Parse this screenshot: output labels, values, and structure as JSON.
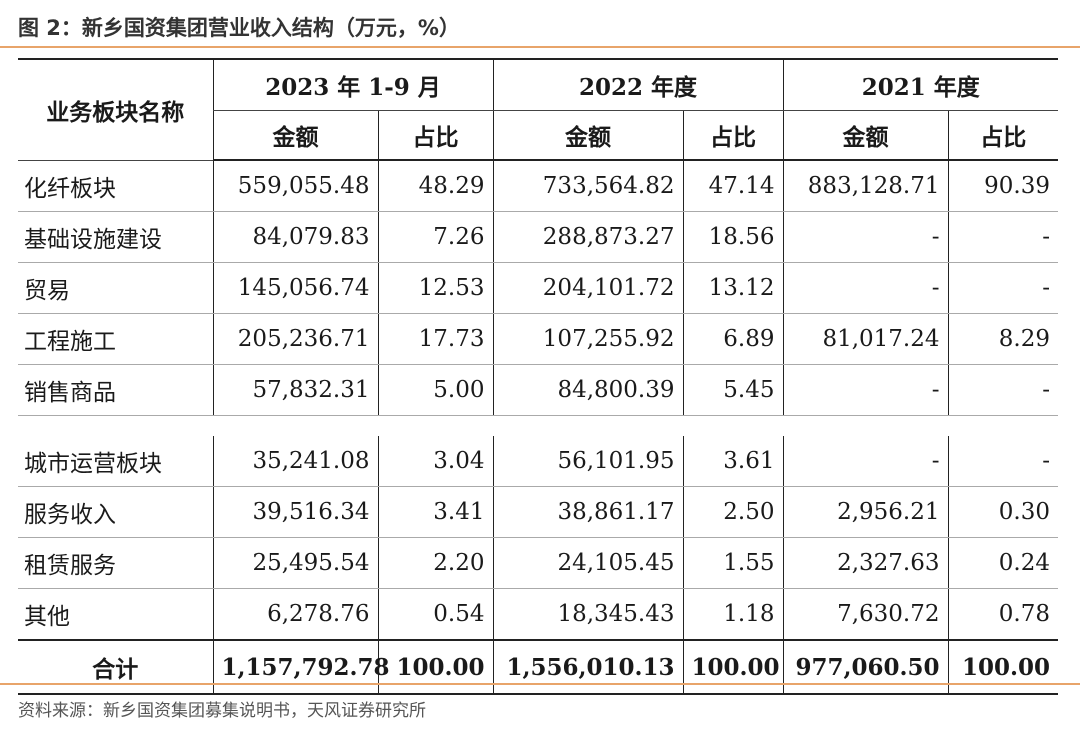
{
  "title": "图 2：新乡国资集团营业收入结构（万元，%）",
  "source": "资料来源：新乡国资集团募集说明书，天风证券研究所",
  "table": {
    "name_header": "业务板块名称",
    "periods": [
      "2023 年 1-9 月",
      "2022 年度",
      "2021 年度"
    ],
    "sub_headers": [
      "金额",
      "占比"
    ],
    "rows_a": [
      {
        "name": "化纤板块",
        "v": [
          "559,055.48",
          "48.29",
          "733,564.82",
          "47.14",
          "883,128.71",
          "90.39"
        ]
      },
      {
        "name": "基础设施建设",
        "v": [
          "84,079.83",
          "7.26",
          "288,873.27",
          "18.56",
          "-",
          "-"
        ]
      },
      {
        "name": "贸易",
        "v": [
          "145,056.74",
          "12.53",
          "204,101.72",
          "13.12",
          "-",
          "-"
        ]
      },
      {
        "name": "工程施工",
        "v": [
          "205,236.71",
          "17.73",
          "107,255.92",
          "6.89",
          "81,017.24",
          "8.29"
        ]
      },
      {
        "name": "销售商品",
        "v": [
          "57,832.31",
          "5.00",
          "84,800.39",
          "5.45",
          "-",
          "-"
        ]
      }
    ],
    "rows_b": [
      {
        "name": "城市运营板块",
        "v": [
          "35,241.08",
          "3.04",
          "56,101.95",
          "3.61",
          "-",
          "-"
        ]
      },
      {
        "name": "服务收入",
        "v": [
          "39,516.34",
          "3.41",
          "38,861.17",
          "2.50",
          "2,956.21",
          "0.30"
        ]
      },
      {
        "name": "租赁服务",
        "v": [
          "25,495.54",
          "2.20",
          "24,105.45",
          "1.55",
          "2,327.63",
          "0.24"
        ]
      },
      {
        "name": "其他",
        "v": [
          "6,278.76",
          "0.54",
          "18,345.43",
          "1.18",
          "7,630.72",
          "0.78"
        ]
      }
    ],
    "total": {
      "name": "合计",
      "v": [
        "1,157,792.78",
        "100.00",
        "1,556,010.13",
        "100.00",
        "977,060.50",
        "100.00"
      ]
    }
  }
}
